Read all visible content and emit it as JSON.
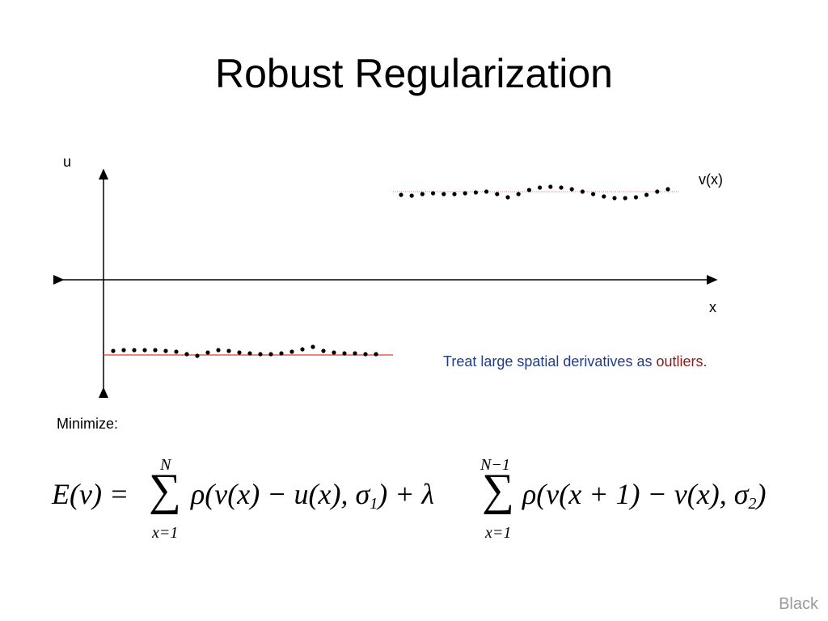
{
  "slide": {
    "title": "Robust Regularization",
    "footer": "Black"
  },
  "diagram": {
    "axis_u_label": "u",
    "axis_x_label": "x",
    "curve_label": "v(x)"
  },
  "annotation": {
    "prefix": "Treat large spatial derivatives as ",
    "emphasis": "outliers",
    "suffix": "."
  },
  "minimize_label": "Minimize:",
  "formula": {
    "lhs": "E(v) = ",
    "sum1_upper": "N",
    "sum1_lower": "x=1",
    "term1": "ρ(v(x) − u(x), σ",
    "term1_sub": "1",
    "term1_close": ") + λ",
    "sum2_upper": "N−1",
    "sum2_lower": "x=1",
    "term2": "ρ(v(x + 1) − v(x), σ",
    "term2_sub": "2",
    "term2_close": ")"
  },
  "colors": {
    "text_blue": "#1f3c88",
    "text_red": "#8b1a1a",
    "reference_line_red": "#e03c31"
  }
}
